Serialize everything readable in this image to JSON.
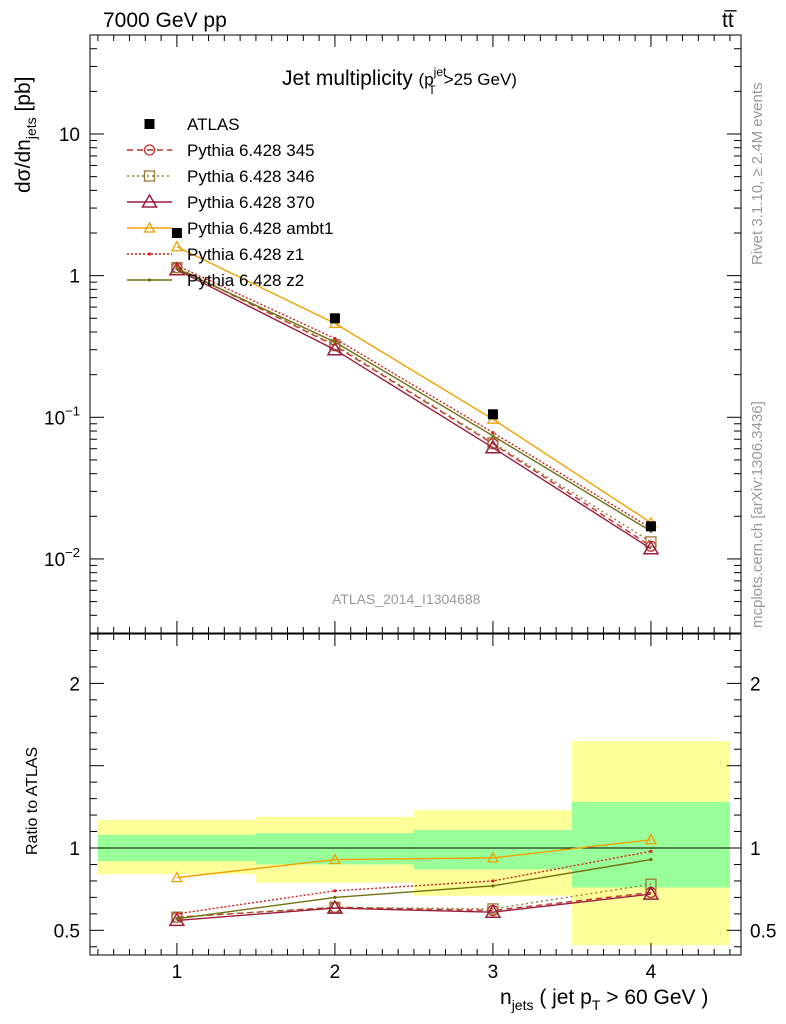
{
  "header": {
    "left": "7000 GeV pp",
    "right": "tt̅"
  },
  "side_text": {
    "rivet": "Rivet 3.1.10, ≥ 2.4M events",
    "mcplots": "mcplots.cern.ch [arXiv:1306.3436]"
  },
  "chart_data": {
    "type": "line",
    "title": "Jet multiplicity",
    "title_sub": "(p",
    "title_sup": "jet",
    "title_subscript": "T",
    "title_tail": ">25 GeV)",
    "analysis_label": "ATLAS_2014_I1304688",
    "ylabel_main": "dσ/dn",
    "ylabel_main_sub": "jets",
    "ylabel_main_unit": " [pb]",
    "ylabel_ratio": "Ratio to ATLAS",
    "xlabel_n": "n",
    "xlabel_sub": "jets",
    "xlabel_mid": " ( jet p",
    "xlabel_sub2": "T",
    "xlabel_tail": " > 60 GeV )",
    "x_ticks": [
      "1",
      "2",
      "3",
      "4"
    ],
    "x_range": [
      0.45,
      4.57
    ],
    "y_main_range": [
      0.003,
      50
    ],
    "y_main_scale": "log",
    "y_main_ticks": [
      {
        "value": 10,
        "label": "10"
      },
      {
        "value": 1,
        "label": "1"
      },
      {
        "value": 0.1,
        "base": "10",
        "exp": "−1"
      },
      {
        "value": 0.01,
        "base": "10",
        "exp": "−2"
      }
    ],
    "y_ratio_range": [
      0.35,
      2.3
    ],
    "y_ratio_ticks": [
      "0.5",
      "1",
      "2"
    ],
    "x": [
      1,
      2,
      3,
      4
    ],
    "data": {
      "name": "ATLAS",
      "values": [
        2.0,
        0.5,
        0.105,
        0.017
      ],
      "bins": [
        [
          0.5,
          1.5
        ],
        [
          1.5,
          2.5
        ],
        [
          2.5,
          3.5
        ],
        [
          3.5,
          4.5
        ]
      ],
      "band_inner": [
        [
          0.92,
          1.08
        ],
        [
          0.9,
          1.09
        ],
        [
          0.87,
          1.11
        ],
        [
          0.76,
          1.28
        ]
      ],
      "band_outer": [
        [
          0.84,
          1.17
        ],
        [
          0.79,
          1.19
        ],
        [
          0.71,
          1.23
        ],
        [
          0.41,
          1.65
        ]
      ]
    },
    "series": [
      {
        "name": "Pythia 6.428 345",
        "color": "#c0302a",
        "dash": "6,4",
        "marker": "circle",
        "values": [
          1.14,
          0.32,
          0.065,
          0.0123
        ],
        "ratio": [
          0.58,
          0.64,
          0.62,
          0.73
        ]
      },
      {
        "name": "Pythia 6.428 346",
        "color": "#9e7a32",
        "dash": "2,3",
        "marker": "square",
        "values": [
          1.14,
          0.325,
          0.066,
          0.0132
        ],
        "ratio": [
          0.58,
          0.64,
          0.63,
          0.78
        ]
      },
      {
        "name": "Pythia 6.428 370",
        "color": "#9a1d3e",
        "dash": "",
        "marker": "triangle",
        "values": [
          1.1,
          0.3,
          0.061,
          0.0118
        ],
        "ratio": [
          0.56,
          0.635,
          0.61,
          0.72
        ]
      },
      {
        "name": "Pythia 6.428 ambt1",
        "color": "#f0a000",
        "dash": "",
        "marker": "triangle-small",
        "values": [
          1.6,
          0.46,
          0.097,
          0.018
        ],
        "ratio": [
          0.82,
          0.93,
          0.94,
          1.05
        ]
      },
      {
        "name": "Pythia 6.428 z1",
        "color": "#d42020",
        "dash": "2,2",
        "marker": "dot",
        "values": [
          1.18,
          0.36,
          0.078,
          0.0165
        ],
        "ratio": [
          0.6,
          0.74,
          0.8,
          0.98
        ]
      },
      {
        "name": "Pythia 6.428 z2",
        "color": "#707010",
        "dash": "",
        "marker": "dot",
        "values": [
          1.12,
          0.34,
          0.074,
          0.0157
        ],
        "ratio": [
          0.57,
          0.7,
          0.77,
          0.93
        ]
      }
    ]
  }
}
